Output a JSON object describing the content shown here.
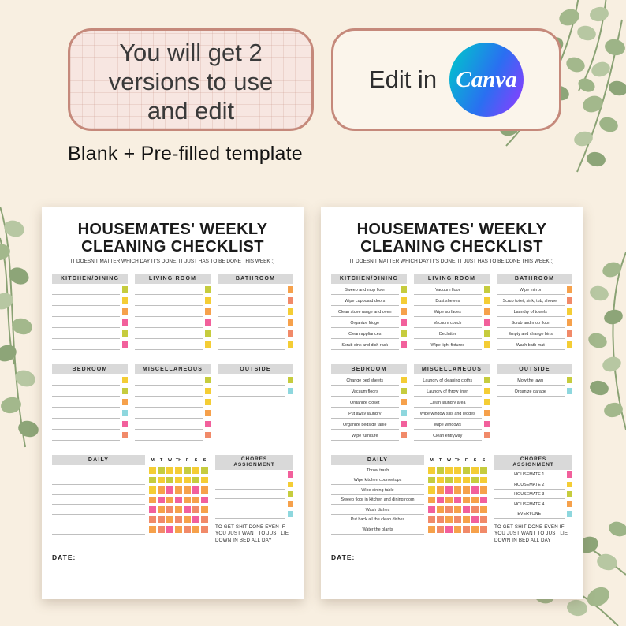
{
  "badges": {
    "versions_lines": [
      "You will get 2",
      "versions to use",
      "and edit"
    ],
    "edit_in": "Edit in",
    "canva": "Canva"
  },
  "note": "Blank + Pre-filled template",
  "sheet": {
    "title_lines": [
      "HOUSEMATES' WEEKLY",
      "CLEANING CHECKLIST"
    ],
    "subtitle": "IT DOESN'T MATTER WHICH DAY IT'S DONE, IT JUST HAS TO BE DONE THIS WEEK :)",
    "sections": [
      {
        "name": "KITCHEN/DINING",
        "tasks": [
          "Sweep and mop floor",
          "Wipe cupboard doors",
          "Clean stove range and oven",
          "Organize fridge",
          "Clean appliances",
          "Scrub sink and dish rack"
        ],
        "colors": [
          "olive",
          "yellow",
          "orange",
          "pink",
          "olive",
          "pink"
        ]
      },
      {
        "name": "LIVING ROOM",
        "tasks": [
          "Vacuum floor",
          "Dust shelves",
          "Wipe surfaces",
          "Vacuum couch",
          "Declutter",
          "Wipe light fixtures"
        ],
        "colors": [
          "olive",
          "yellow",
          "orange",
          "pink",
          "olive",
          "yellow"
        ]
      },
      {
        "name": "BATHROOM",
        "tasks": [
          "Wipe mirror",
          "Scrub toilet, sink, tub, shower",
          "Laundry of towels",
          "Scrub and mop floor",
          "Empty and change bins",
          "Wash bath mat"
        ],
        "colors": [
          "orange",
          "salmon",
          "yellow",
          "orange",
          "salmon",
          "yellow"
        ]
      },
      {
        "name": "BEDROOM",
        "tasks": [
          "Change bed sheets",
          "Vacuum floors",
          "Organize closet",
          "Put away laundry",
          "Organize bedside table",
          "Wipe furniture"
        ],
        "colors": [
          "yellow",
          "olive",
          "orange",
          "cyan",
          "pink",
          "salmon"
        ]
      },
      {
        "name": "MISCELLANEOUS",
        "tasks": [
          "Laundry of cleaning cloths",
          "Laundry of throw linen",
          "Clean laundry area",
          "Wipe window sills and ledges",
          "Wipe windows",
          "Clean entryway"
        ],
        "colors": [
          "olive",
          "yellow",
          "yellow",
          "orange",
          "pink",
          "salmon"
        ]
      },
      {
        "name": "OUTSIDE",
        "tasks": [
          "Mow the lawn",
          "Organize garage"
        ],
        "colors": [
          "olive",
          "cyan"
        ]
      }
    ],
    "daily": {
      "label": "DAILY",
      "days": [
        "M",
        "T",
        "W",
        "TH",
        "F",
        "S",
        "S"
      ],
      "tasks": [
        "Throw trash",
        "Wipe kitchen countertops",
        "Wipe dining table",
        "Sweep floor in kitchen and dining room",
        "Wash dishes",
        "Put back all the clean dishes",
        "Water the plants"
      ],
      "grid": [
        [
          "yellow",
          "olive",
          "yellow",
          "yellow",
          "olive",
          "yellow",
          "olive"
        ],
        [
          "olive",
          "yellow",
          "olive",
          "yellow",
          "yellow",
          "olive",
          "yellow"
        ],
        [
          "yellow",
          "orange",
          "pink",
          "orange",
          "orange",
          "pink",
          "orange"
        ],
        [
          "orange",
          "pink",
          "orange",
          "pink",
          "orange",
          "orange",
          "pink"
        ],
        [
          "pink",
          "orange",
          "salmon",
          "orange",
          "pink",
          "salmon",
          "orange"
        ],
        [
          "salmon",
          "salmon",
          "orange",
          "salmon",
          "orange",
          "pink",
          "salmon"
        ],
        [
          "orange",
          "salmon",
          "pink",
          "orange",
          "salmon",
          "orange",
          "salmon"
        ]
      ]
    },
    "chores": {
      "label_lines": [
        "CHORES",
        "ASSIGNMENT"
      ],
      "rows": [
        "HOUSEMATE 1",
        "HOUSEMATE 2",
        "HOUSEMATE 3",
        "HOUSEMATE 4",
        "EVERYONE"
      ],
      "colors": [
        "pink",
        "yellow",
        "olive",
        "orange",
        "cyan"
      ]
    },
    "motivation": "TO GET SHIT DONE EVEN IF YOU JUST WANT TO JUST LIE DOWN IN BED ALL DAY",
    "date_label": "DATE:"
  },
  "palette": {
    "olive": "#c6cc3e",
    "yellow": "#f4cd35",
    "orange": "#f6a14b",
    "pink": "#f2609c",
    "salmon": "#f18a69",
    "cyan": "#8ed7de"
  },
  "colors": {
    "background": "#f8efe1",
    "badge_border": "#c5897b",
    "canva_gradient": [
      "#00c4cc",
      "#2a6ff1",
      "#8b3dff"
    ]
  }
}
